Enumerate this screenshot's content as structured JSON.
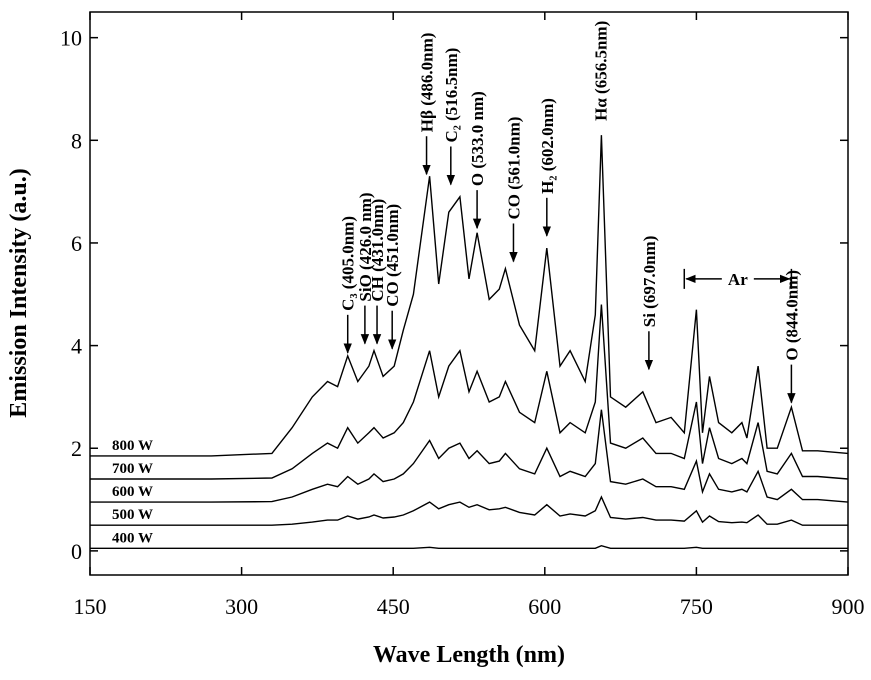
{
  "chart_data": {
    "type": "line",
    "x_label": "Wave Length (nm)",
    "y_label": "Emission Intensity (a.u.)",
    "xlim": [
      150,
      900
    ],
    "xticks": [
      150,
      300,
      450,
      600,
      750,
      900
    ],
    "ylim": [
      -0.47,
      10.5
    ],
    "yticks": [
      0,
      2,
      4,
      6,
      8,
      10
    ],
    "x": [
      150,
      210,
      270,
      330,
      350,
      370,
      385,
      395,
      405,
      415,
      426,
      431,
      440,
      451,
      460,
      470,
      486,
      495,
      505,
      516,
      525,
      533,
      545,
      555,
      561,
      575,
      590,
      602,
      615,
      625,
      640,
      650,
      656,
      665,
      680,
      697,
      710,
      725,
      738,
      750,
      756,
      763,
      772,
      785,
      795,
      800,
      811,
      820,
      830,
      844,
      855,
      870,
      900
    ],
    "series": [
      {
        "name": "800 W",
        "color": "#000000",
        "values": [
          1.85,
          1.85,
          1.85,
          1.9,
          2.4,
          3.0,
          3.3,
          3.2,
          3.8,
          3.3,
          3.6,
          3.9,
          3.4,
          3.6,
          4.3,
          5.0,
          7.3,
          5.2,
          6.6,
          6.9,
          5.3,
          6.2,
          4.9,
          5.1,
          5.5,
          4.4,
          3.9,
          5.9,
          3.6,
          3.9,
          3.3,
          4.6,
          8.1,
          3.0,
          2.8,
          3.1,
          2.5,
          2.6,
          2.3,
          4.7,
          2.3,
          3.4,
          2.5,
          2.3,
          2.5,
          2.2,
          3.6,
          2.0,
          2.0,
          2.8,
          1.95,
          1.95,
          1.9
        ]
      },
      {
        "name": "700 W",
        "color": "#000000",
        "values": [
          1.4,
          1.4,
          1.4,
          1.42,
          1.6,
          1.9,
          2.1,
          2.0,
          2.4,
          2.1,
          2.3,
          2.4,
          2.2,
          2.3,
          2.5,
          2.9,
          3.9,
          3.0,
          3.6,
          3.9,
          3.1,
          3.5,
          2.9,
          3.0,
          3.3,
          2.7,
          2.5,
          3.5,
          2.3,
          2.5,
          2.3,
          2.9,
          4.8,
          2.1,
          2.0,
          2.2,
          1.9,
          1.9,
          1.8,
          2.9,
          1.7,
          2.4,
          1.8,
          1.7,
          1.8,
          1.7,
          2.5,
          1.55,
          1.5,
          1.9,
          1.45,
          1.45,
          1.4
        ]
      },
      {
        "name": "600 W",
        "color": "#000000",
        "values": [
          0.95,
          0.95,
          0.95,
          0.96,
          1.05,
          1.2,
          1.3,
          1.25,
          1.45,
          1.3,
          1.4,
          1.5,
          1.35,
          1.4,
          1.5,
          1.7,
          2.15,
          1.8,
          2.0,
          2.1,
          1.8,
          1.95,
          1.7,
          1.75,
          1.9,
          1.6,
          1.5,
          2.0,
          1.45,
          1.55,
          1.45,
          1.7,
          2.75,
          1.35,
          1.3,
          1.4,
          1.25,
          1.25,
          1.2,
          1.75,
          1.15,
          1.5,
          1.2,
          1.15,
          1.2,
          1.15,
          1.55,
          1.05,
          1.0,
          1.2,
          1.0,
          1.0,
          0.95
        ]
      },
      {
        "name": "500 W",
        "color": "#000000",
        "values": [
          0.5,
          0.5,
          0.5,
          0.5,
          0.52,
          0.56,
          0.6,
          0.6,
          0.68,
          0.62,
          0.66,
          0.7,
          0.64,
          0.66,
          0.7,
          0.78,
          0.95,
          0.82,
          0.9,
          0.95,
          0.85,
          0.9,
          0.8,
          0.82,
          0.85,
          0.75,
          0.7,
          0.9,
          0.68,
          0.72,
          0.68,
          0.78,
          1.05,
          0.65,
          0.62,
          0.65,
          0.6,
          0.6,
          0.58,
          0.78,
          0.56,
          0.68,
          0.57,
          0.55,
          0.56,
          0.55,
          0.7,
          0.52,
          0.52,
          0.6,
          0.5,
          0.5,
          0.5
        ]
      },
      {
        "name": "400 W",
        "color": "#000000",
        "values": [
          0.05,
          0.05,
          0.05,
          0.05,
          0.05,
          0.05,
          0.05,
          0.05,
          0.05,
          0.05,
          0.05,
          0.05,
          0.05,
          0.05,
          0.05,
          0.05,
          0.07,
          0.05,
          0.05,
          0.05,
          0.05,
          0.05,
          0.05,
          0.05,
          0.05,
          0.05,
          0.05,
          0.05,
          0.05,
          0.05,
          0.05,
          0.05,
          0.1,
          0.05,
          0.05,
          0.05,
          0.05,
          0.05,
          0.05,
          0.07,
          0.05,
          0.05,
          0.05,
          0.05,
          0.05,
          0.05,
          0.05,
          0.05,
          0.05,
          0.05,
          0.05,
          0.05,
          0.05
        ]
      }
    ],
    "annotations": [
      {
        "text": "C₃ (405.0nm)",
        "x": 405,
        "y": 3.82
      },
      {
        "text": "SiO (426.0 nm)",
        "x": 422,
        "y": 4.0
      },
      {
        "text": "CH (431.0nm)",
        "x": 434,
        "y": 4.0
      },
      {
        "text": "CO (451.0nm)",
        "x": 449,
        "y": 3.9
      },
      {
        "text": "Hβ (486.0nm)",
        "x": 483,
        "y": 7.3
      },
      {
        "text": "C₂ (516.5nm)",
        "x": 507,
        "y": 7.1
      },
      {
        "text": "O (533.0 nm)",
        "x": 533,
        "y": 6.25
      },
      {
        "text": "CO (561.0nm)",
        "x": 569,
        "y": 5.6
      },
      {
        "text": "H₂ (602.0nm)",
        "x": 602,
        "y": 6.1
      },
      {
        "text": "Hα (656.5nm)",
        "x": 655,
        "y": 8.3,
        "arrow": false
      },
      {
        "text": "Si (697.0nm)",
        "x": 703,
        "y": 3.5
      },
      {
        "text": "O (844.0nm)",
        "x": 844,
        "y": 2.85
      }
    ],
    "range_annotation": {
      "text": "Ar",
      "x": [
        738,
        844
      ],
      "y": 5.3
    }
  }
}
